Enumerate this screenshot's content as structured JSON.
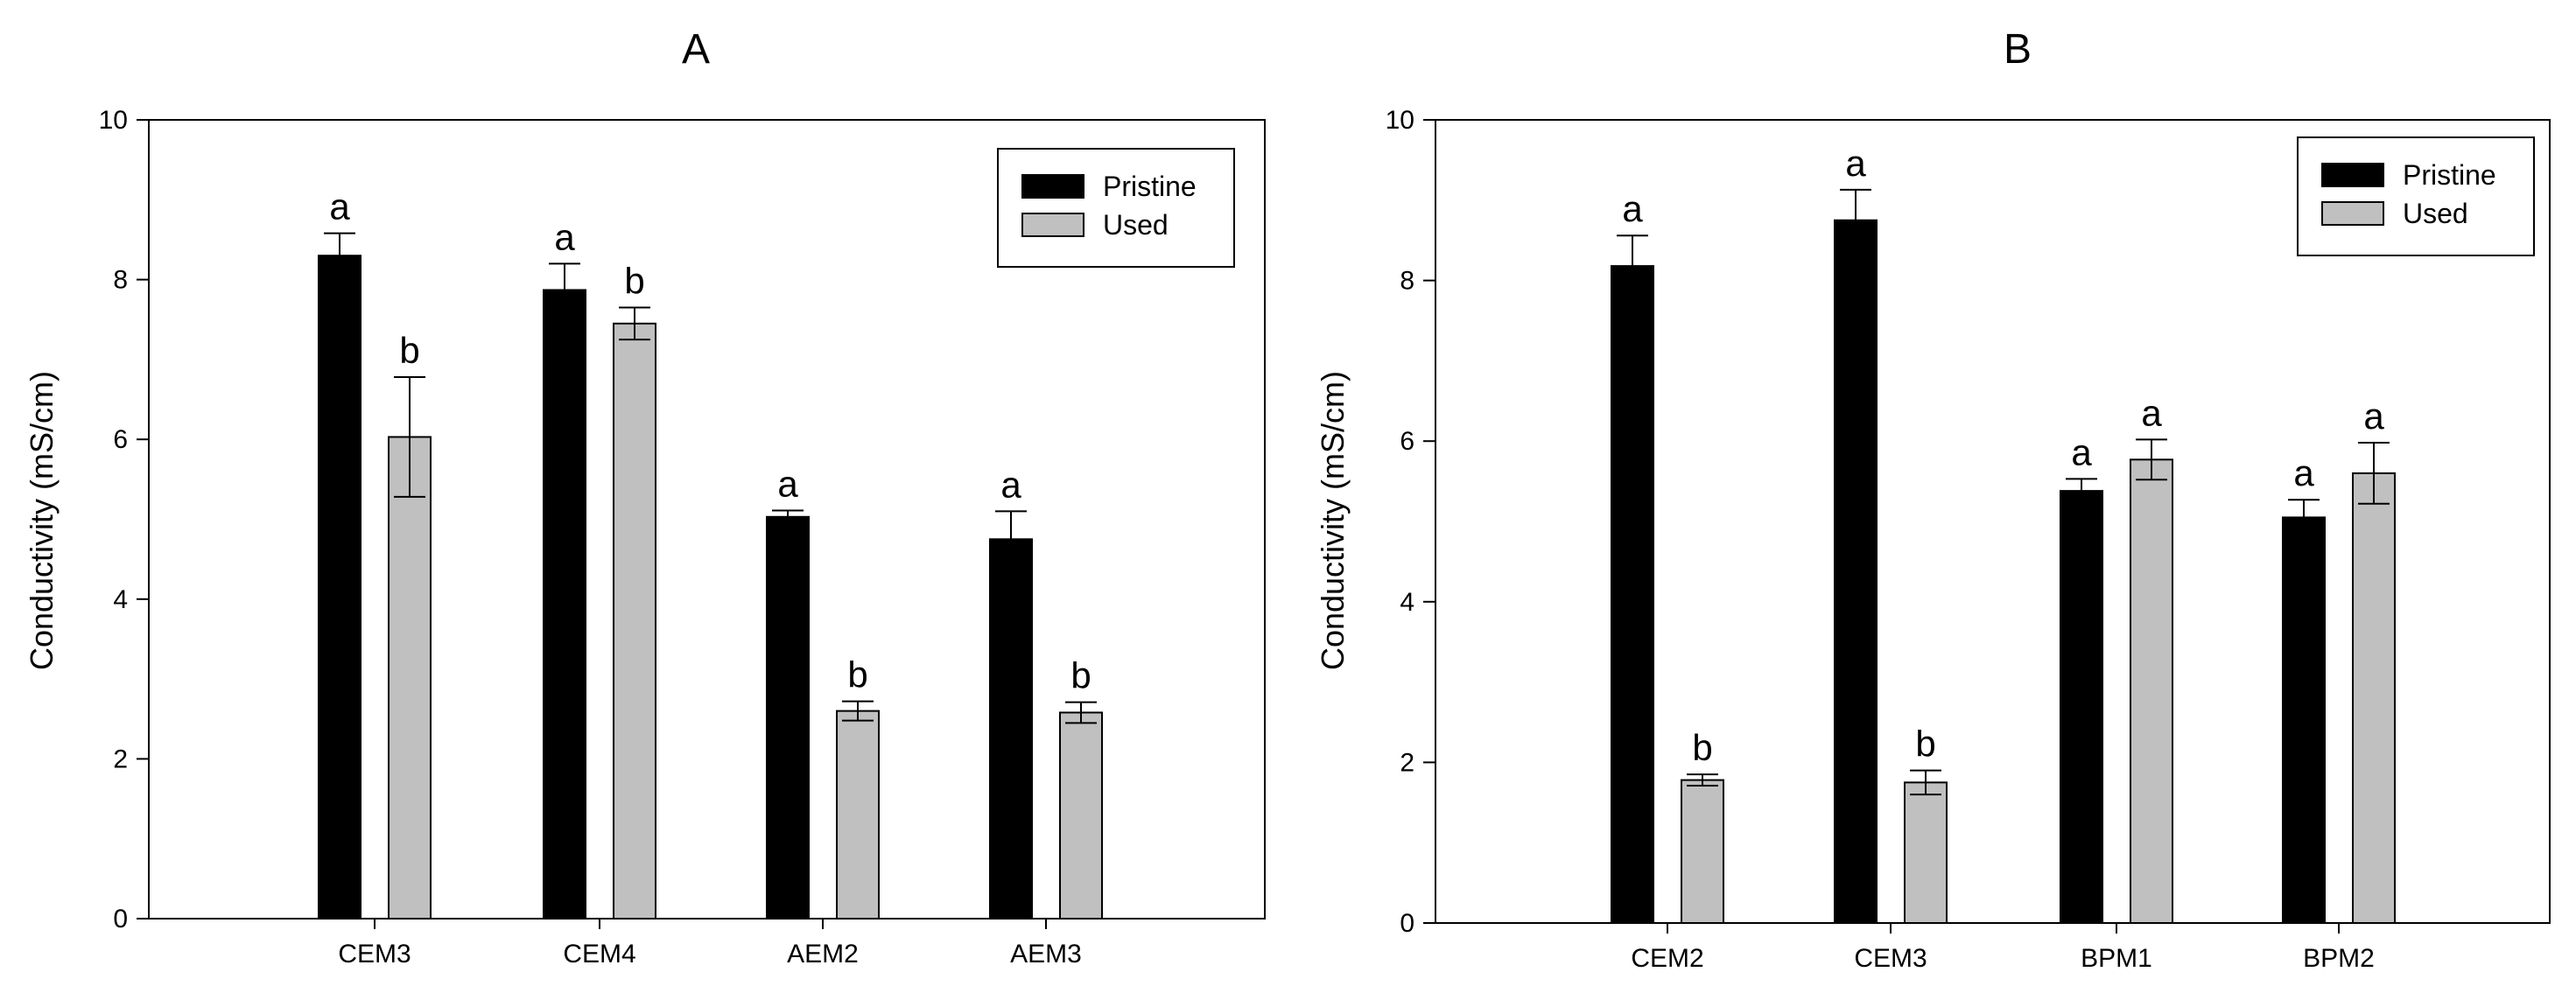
{
  "chart_data": [
    {
      "panel": "A",
      "type": "bar",
      "title": "A",
      "xlabel": "",
      "ylabel": "Conductivity (mS/cm)",
      "ylim": [
        0,
        10
      ],
      "yticks": [
        0,
        2,
        4,
        6,
        8,
        10
      ],
      "categories": [
        "CEM3",
        "CEM4",
        "AEM2",
        "AEM3"
      ],
      "series": [
        {
          "name": "Pristine",
          "color": "#000000",
          "values": [
            8.3,
            7.87,
            5.03,
            4.75
          ],
          "errors": [
            0.28,
            0.33,
            0.08,
            0.35
          ],
          "letters": [
            "a",
            "a",
            "a",
            "a"
          ]
        },
        {
          "name": "Used",
          "color": "#c0c0c0",
          "values": [
            6.03,
            7.45,
            2.6,
            2.58
          ],
          "errors": [
            0.75,
            0.2,
            0.12,
            0.13
          ],
          "letters": [
            "b",
            "b",
            "b",
            "b"
          ]
        }
      ],
      "legend_position": "top-right"
    },
    {
      "panel": "B",
      "type": "bar",
      "title": "B",
      "xlabel": "",
      "ylabel": "Conductivity (mS/cm)",
      "ylim": [
        0,
        10
      ],
      "yticks": [
        0,
        2,
        4,
        6,
        8,
        10
      ],
      "categories": [
        "CEM2",
        "CEM3",
        "BPM1",
        "BPM2"
      ],
      "series": [
        {
          "name": "Pristine",
          "color": "#000000",
          "values": [
            8.18,
            8.75,
            5.38,
            5.05
          ],
          "errors": [
            0.38,
            0.38,
            0.15,
            0.22
          ],
          "letters": [
            "a",
            "a",
            "a",
            "a"
          ]
        },
        {
          "name": "Used",
          "color": "#c0c0c0",
          "values": [
            1.78,
            1.75,
            5.77,
            5.6
          ],
          "errors": [
            0.07,
            0.15,
            0.25,
            0.38
          ],
          "letters": [
            "b",
            "b",
            "a",
            "a"
          ]
        }
      ],
      "legend_position": "top-right"
    }
  ]
}
